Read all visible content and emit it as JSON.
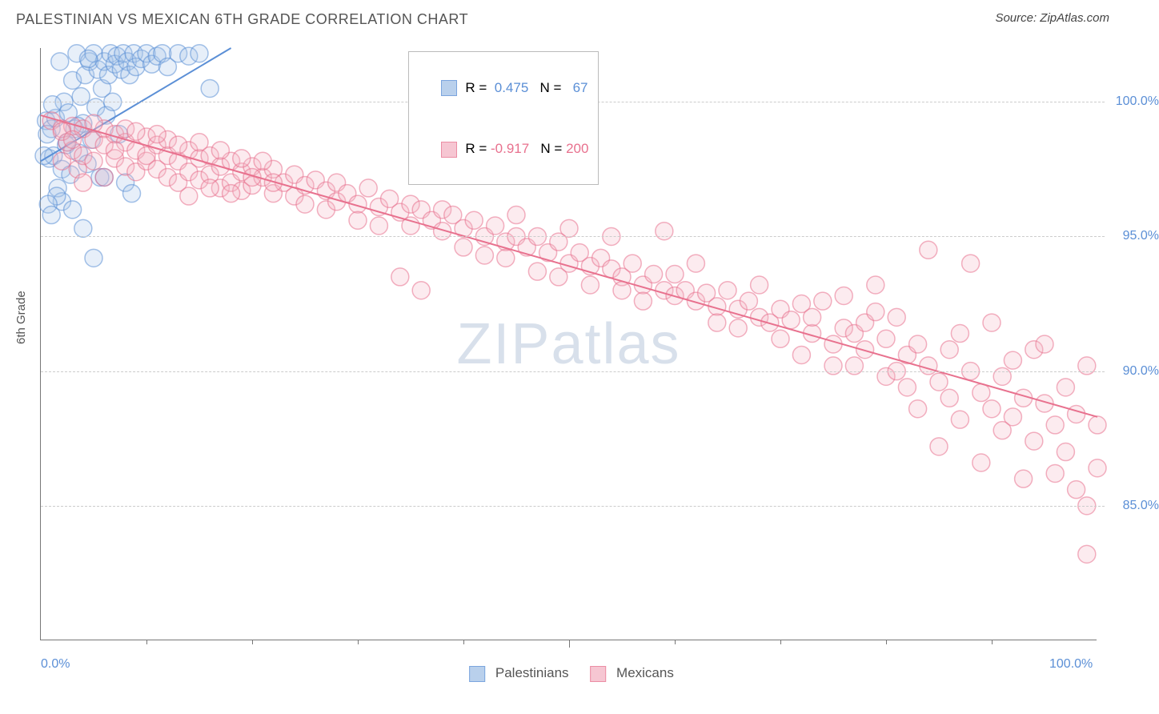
{
  "header": {
    "title": "PALESTINIAN VS MEXICAN 6TH GRADE CORRELATION CHART",
    "source": "Source: ZipAtlas.com"
  },
  "watermark": {
    "zip": "ZIP",
    "atlas": "atlas"
  },
  "chart": {
    "type": "scatter",
    "background_color": "#ffffff",
    "grid_color": "#cccccc",
    "axis_color": "#777777",
    "tick_label_color": "#5b8fd6",
    "ylabel": "6th Grade",
    "xlim": [
      0,
      100
    ],
    "ylim": [
      80,
      102
    ],
    "ytick_values": [
      85,
      90,
      95,
      100
    ],
    "ytick_labels": [
      "85.0%",
      "90.0%",
      "95.0%",
      "100.0%"
    ],
    "xtick_major": [
      0,
      100
    ],
    "xtick_labels": [
      "0.0%",
      "100.0%"
    ],
    "xtick_minor": [
      10,
      20,
      30,
      40,
      50,
      60,
      70,
      80,
      90
    ],
    "label_fontsize": 15,
    "tick_fontsize": 16,
    "marker_radius": 11,
    "marker_fill_opacity": 0.28,
    "marker_stroke_width": 1.5,
    "line_width": 2,
    "series": [
      {
        "name": "Palestinians",
        "color": "#5b8fd6",
        "fill": "#a8c5e8",
        "R": "0.475",
        "N": "67",
        "trend": {
          "x1": 0,
          "y1": 97.8,
          "x2": 18,
          "y2": 102
        },
        "points": [
          [
            0.5,
            99.3
          ],
          [
            0.8,
            97.9
          ],
          [
            1.0,
            99.0
          ],
          [
            1.2,
            98.0
          ],
          [
            1.4,
            99.4
          ],
          [
            1.6,
            96.8
          ],
          [
            1.8,
            101.5
          ],
          [
            2.0,
            97.5
          ],
          [
            2.2,
            100.0
          ],
          [
            2.4,
            98.4
          ],
          [
            2.6,
            99.6
          ],
          [
            2.8,
            97.3
          ],
          [
            3.0,
            100.8
          ],
          [
            3.2,
            99.0
          ],
          [
            3.4,
            101.8
          ],
          [
            3.6,
            98.1
          ],
          [
            3.8,
            100.2
          ],
          [
            4.0,
            99.2
          ],
          [
            4.2,
            101.0
          ],
          [
            4.4,
            97.7
          ],
          [
            4.6,
            101.5
          ],
          [
            4.8,
            98.6
          ],
          [
            5.0,
            101.8
          ],
          [
            5.2,
            99.8
          ],
          [
            5.4,
            101.2
          ],
          [
            5.6,
            97.2
          ],
          [
            5.8,
            100.5
          ],
          [
            6.0,
            101.5
          ],
          [
            6.2,
            99.5
          ],
          [
            6.4,
            101.0
          ],
          [
            6.6,
            101.8
          ],
          [
            6.8,
            100.0
          ],
          [
            7.0,
            101.4
          ],
          [
            7.2,
            101.7
          ],
          [
            7.4,
            98.8
          ],
          [
            7.6,
            101.2
          ],
          [
            7.8,
            101.8
          ],
          [
            8.0,
            97.0
          ],
          [
            8.2,
            101.5
          ],
          [
            8.4,
            101.0
          ],
          [
            8.6,
            96.6
          ],
          [
            8.8,
            101.8
          ],
          [
            9.0,
            101.3
          ],
          [
            9.5,
            101.6
          ],
          [
            10.0,
            101.8
          ],
          [
            10.5,
            101.4
          ],
          [
            11.0,
            101.7
          ],
          [
            11.5,
            101.8
          ],
          [
            12.0,
            101.3
          ],
          [
            13.0,
            101.8
          ],
          [
            14.0,
            101.7
          ],
          [
            15.0,
            101.8
          ],
          [
            16.0,
            100.5
          ],
          [
            2.0,
            96.3
          ],
          [
            3.0,
            96.0
          ],
          [
            4.0,
            95.3
          ],
          [
            1.5,
            96.5
          ],
          [
            5.0,
            94.2
          ],
          [
            0.7,
            96.2
          ],
          [
            1.0,
            95.8
          ],
          [
            2.5,
            98.5
          ],
          [
            3.5,
            99.1
          ],
          [
            4.5,
            101.6
          ],
          [
            6.0,
            97.2
          ],
          [
            0.3,
            98.0
          ],
          [
            0.6,
            98.8
          ],
          [
            1.1,
            99.9
          ]
        ]
      },
      {
        "name": "Mexicans",
        "color": "#e8718e",
        "fill": "#f5b8c7",
        "R": "-0.917",
        "N": "200",
        "trend": {
          "x1": 0,
          "y1": 99.5,
          "x2": 100,
          "y2": 88.3
        },
        "points": [
          [
            1,
            99.3
          ],
          [
            2,
            99.0
          ],
          [
            2,
            97.8
          ],
          [
            2.5,
            98.5
          ],
          [
            3,
            99.1
          ],
          [
            3,
            98.2
          ],
          [
            3.5,
            97.5
          ],
          [
            4,
            99.0
          ],
          [
            4,
            98.0
          ],
          [
            4,
            97.0
          ],
          [
            5,
            98.6
          ],
          [
            5,
            97.8
          ],
          [
            6,
            99.0
          ],
          [
            6,
            98.4
          ],
          [
            6,
            97.2
          ],
          [
            7,
            98.8
          ],
          [
            7,
            97.9
          ],
          [
            8,
            98.5
          ],
          [
            8,
            97.6
          ],
          [
            8,
            99.0
          ],
          [
            9,
            98.2
          ],
          [
            9,
            97.4
          ],
          [
            10,
            98.7
          ],
          [
            10,
            97.8
          ],
          [
            10,
            98.0
          ],
          [
            11,
            98.4
          ],
          [
            11,
            97.5
          ],
          [
            12,
            98.0
          ],
          [
            12,
            97.2
          ],
          [
            12,
            98.6
          ],
          [
            13,
            97.8
          ],
          [
            13,
            97.0
          ],
          [
            14,
            98.2
          ],
          [
            14,
            97.4
          ],
          [
            15,
            97.9
          ],
          [
            15,
            97.1
          ],
          [
            16,
            98.0
          ],
          [
            16,
            97.3
          ],
          [
            17,
            97.6
          ],
          [
            17,
            96.8
          ],
          [
            18,
            97.8
          ],
          [
            18,
            97.0
          ],
          [
            19,
            97.4
          ],
          [
            19,
            96.7
          ],
          [
            20,
            97.6
          ],
          [
            20,
            96.9
          ],
          [
            21,
            97.2
          ],
          [
            22,
            97.5
          ],
          [
            22,
            96.6
          ],
          [
            23,
            97.0
          ],
          [
            24,
            97.3
          ],
          [
            24,
            96.5
          ],
          [
            25,
            96.9
          ],
          [
            25,
            96.2
          ],
          [
            26,
            97.1
          ],
          [
            27,
            96.7
          ],
          [
            27,
            96.0
          ],
          [
            28,
            97.0
          ],
          [
            28,
            96.3
          ],
          [
            29,
            96.6
          ],
          [
            30,
            96.2
          ],
          [
            30,
            95.6
          ],
          [
            31,
            96.8
          ],
          [
            32,
            96.1
          ],
          [
            32,
            95.4
          ],
          [
            33,
            96.4
          ],
          [
            34,
            95.9
          ],
          [
            34,
            93.5
          ],
          [
            35,
            96.2
          ],
          [
            35,
            95.4
          ],
          [
            36,
            96.0
          ],
          [
            36,
            93.0
          ],
          [
            37,
            95.6
          ],
          [
            38,
            96.0
          ],
          [
            38,
            95.2
          ],
          [
            39,
            95.8
          ],
          [
            40,
            95.3
          ],
          [
            40,
            94.6
          ],
          [
            41,
            95.6
          ],
          [
            42,
            95.0
          ],
          [
            42,
            94.3
          ],
          [
            43,
            95.4
          ],
          [
            44,
            94.8
          ],
          [
            44,
            94.2
          ],
          [
            45,
            95.0
          ],
          [
            45,
            95.8
          ],
          [
            46,
            94.6
          ],
          [
            47,
            95.0
          ],
          [
            47,
            93.7
          ],
          [
            48,
            94.4
          ],
          [
            49,
            94.8
          ],
          [
            49,
            93.5
          ],
          [
            50,
            94.0
          ],
          [
            50,
            95.3
          ],
          [
            51,
            94.4
          ],
          [
            52,
            93.9
          ],
          [
            52,
            93.2
          ],
          [
            53,
            94.2
          ],
          [
            54,
            93.8
          ],
          [
            54,
            95.0
          ],
          [
            55,
            93.5
          ],
          [
            55,
            93.0
          ],
          [
            56,
            94.0
          ],
          [
            57,
            93.2
          ],
          [
            57,
            92.6
          ],
          [
            58,
            93.6
          ],
          [
            59,
            93.0
          ],
          [
            59,
            95.2
          ],
          [
            60,
            92.8
          ],
          [
            60,
            93.6
          ],
          [
            61,
            93.0
          ],
          [
            62,
            92.6
          ],
          [
            62,
            94.0
          ],
          [
            63,
            92.9
          ],
          [
            64,
            92.4
          ],
          [
            64,
            91.8
          ],
          [
            65,
            93.0
          ],
          [
            66,
            92.3
          ],
          [
            66,
            91.6
          ],
          [
            67,
            92.6
          ],
          [
            68,
            92.0
          ],
          [
            68,
            93.2
          ],
          [
            69,
            91.8
          ],
          [
            70,
            92.3
          ],
          [
            70,
            91.2
          ],
          [
            71,
            91.9
          ],
          [
            72,
            90.6
          ],
          [
            72,
            92.5
          ],
          [
            73,
            91.4
          ],
          [
            73,
            92.0
          ],
          [
            74,
            92.6
          ],
          [
            75,
            91.0
          ],
          [
            75,
            90.2
          ],
          [
            76,
            91.6
          ],
          [
            76,
            92.8
          ],
          [
            77,
            90.2
          ],
          [
            77,
            91.4
          ],
          [
            78,
            91.8
          ],
          [
            78,
            90.8
          ],
          [
            79,
            92.2
          ],
          [
            79,
            93.2
          ],
          [
            80,
            91.2
          ],
          [
            80,
            89.8
          ],
          [
            81,
            90.0
          ],
          [
            81,
            92.0
          ],
          [
            82,
            90.6
          ],
          [
            82,
            89.4
          ],
          [
            83,
            91.0
          ],
          [
            83,
            88.6
          ],
          [
            84,
            90.2
          ],
          [
            84,
            94.5
          ],
          [
            85,
            89.6
          ],
          [
            85,
            87.2
          ],
          [
            86,
            90.8
          ],
          [
            86,
            89.0
          ],
          [
            87,
            91.4
          ],
          [
            87,
            88.2
          ],
          [
            88,
            90.0
          ],
          [
            88,
            94.0
          ],
          [
            89,
            89.2
          ],
          [
            89,
            86.6
          ],
          [
            90,
            88.6
          ],
          [
            90,
            91.8
          ],
          [
            91,
            89.8
          ],
          [
            91,
            87.8
          ],
          [
            92,
            90.4
          ],
          [
            92,
            88.3
          ],
          [
            93,
            86.0
          ],
          [
            93,
            89.0
          ],
          [
            94,
            90.8
          ],
          [
            94,
            87.4
          ],
          [
            95,
            88.8
          ],
          [
            95,
            91.0
          ],
          [
            96,
            88.0
          ],
          [
            96,
            86.2
          ],
          [
            97,
            89.4
          ],
          [
            97,
            87.0
          ],
          [
            98,
            88.4
          ],
          [
            98,
            85.6
          ],
          [
            99,
            90.2
          ],
          [
            99,
            85.0
          ],
          [
            99,
            83.2
          ],
          [
            100,
            88.0
          ],
          [
            100,
            86.4
          ],
          [
            2,
            98.9
          ],
          [
            3,
            98.6
          ],
          [
            5,
            99.2
          ],
          [
            7,
            98.2
          ],
          [
            9,
            98.9
          ],
          [
            11,
            98.8
          ],
          [
            13,
            98.4
          ],
          [
            15,
            98.5
          ],
          [
            17,
            98.2
          ],
          [
            19,
            97.9
          ],
          [
            21,
            97.8
          ],
          [
            14,
            96.5
          ],
          [
            16,
            96.8
          ],
          [
            18,
            96.6
          ],
          [
            20,
            97.2
          ],
          [
            22,
            97.0
          ]
        ]
      }
    ]
  },
  "legend_top": {
    "r_label": "R =",
    "n_label": "N ="
  },
  "legend_bottom": {
    "items": [
      "Palestinians",
      "Mexicans"
    ]
  }
}
